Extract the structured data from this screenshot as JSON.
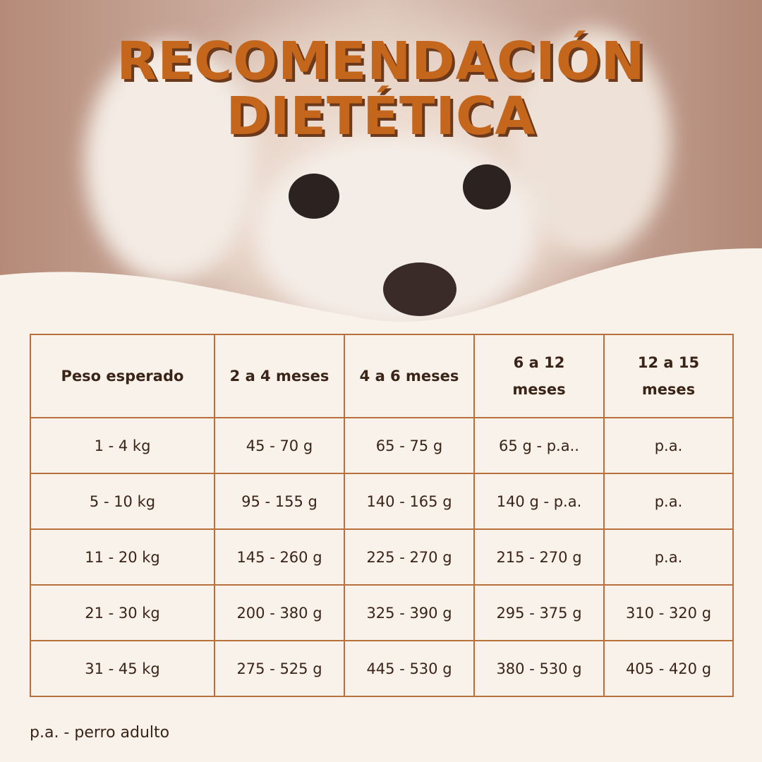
{
  "header": {
    "title_lines": [
      "RECOMENDACIÓN",
      "DIETÉTICA"
    ]
  },
  "table": {
    "headers": [
      "Peso esperado",
      "2 a 4 meses",
      "4 a 6 meses",
      "6 a 12 meses",
      "12 a 15 meses"
    ],
    "rows": [
      [
        "1 - 4 kg",
        "45 - 70 g",
        "65 - 75 g",
        "65 g - p.a..",
        "p.a."
      ],
      [
        "5 - 10 kg",
        "95 - 155 g",
        "140 - 165 g",
        "140 g - p.a.",
        "p.a."
      ],
      [
        "11 - 20 kg",
        "145 - 260 g",
        "225 - 270 g",
        "215 - 270 g",
        "p.a."
      ],
      [
        "21 - 30 kg",
        "200 - 380 g",
        "325 - 390 g",
        "295 - 375 g",
        "310 - 320 g"
      ],
      [
        "31 - 45 kg",
        "275 - 525 g",
        "445 - 530 g",
        "380 - 530 g",
        "405 - 420 g"
      ]
    ]
  },
  "footnote": "p.a. - perro adulto"
}
